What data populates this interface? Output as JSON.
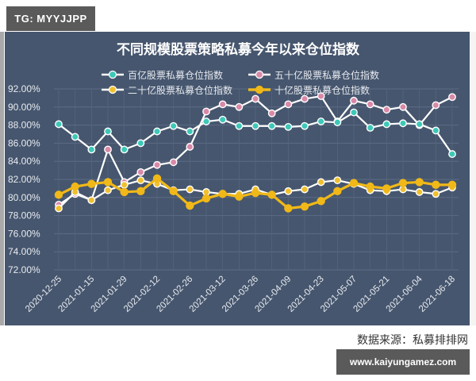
{
  "watermark_top": "TG: MYYJJPP",
  "watermark_bottom": "www.kaiyungamez.com",
  "source_note": "数据来源：私募排排网",
  "chart_data": {
    "type": "line",
    "title": "不同规模股票策略私募今年以来仓位指数",
    "xlabel": "",
    "ylabel": "",
    "ylim": [
      72,
      92
    ],
    "y_ticks": [
      "92.00%",
      "90.00%",
      "88.00%",
      "86.00%",
      "84.00%",
      "82.00%",
      "80.00%",
      "78.00%",
      "76.00%",
      "74.00%",
      "72.00%"
    ],
    "x_tick_labels": [
      "2020-12-25",
      "2021-01-15",
      "2021-01-29",
      "2021-02-12",
      "2021-02-26",
      "2021-03-12",
      "2021-03-26",
      "2021-04-09",
      "2021-04-23",
      "2021-05-07",
      "2021-05-21",
      "2021-06-04",
      "2021-06-18"
    ],
    "grid": true,
    "legend_position": "top",
    "point_count": 25,
    "series": [
      {
        "name": "百亿股票私募仓位指数",
        "color": "#3ec8b8",
        "values": [
          88.1,
          86.7,
          85.3,
          87.3,
          85.3,
          86.0,
          87.3,
          87.9,
          87.3,
          88.4,
          88.6,
          87.9,
          87.9,
          87.9,
          87.8,
          87.9,
          88.4,
          88.3,
          89.4,
          87.7,
          88.1,
          88.2,
          88.1,
          87.4,
          84.8
        ]
      },
      {
        "name": "五十亿股票私募仓位指数",
        "color": "#d98aa8",
        "values": [
          79.2,
          80.4,
          79.7,
          85.3,
          81.7,
          82.8,
          83.6,
          83.9,
          85.6,
          89.5,
          90.3,
          90.0,
          90.9,
          89.3,
          90.3,
          90.9,
          91.2,
          88.4,
          90.7,
          90.3,
          89.7,
          90.0,
          88.0,
          90.2,
          91.1
        ]
      },
      {
        "name": "二十亿股票私募仓位指数",
        "color": "#f0c030",
        "line_color": "#ffffff",
        "values": [
          78.8,
          80.6,
          79.7,
          80.8,
          81.4,
          81.9,
          81.5,
          80.8,
          80.9,
          80.6,
          80.4,
          80.4,
          80.9,
          80.3,
          80.7,
          80.9,
          81.7,
          81.9,
          81.5,
          80.8,
          80.7,
          80.9,
          80.6,
          80.4,
          81.1
        ]
      },
      {
        "name": "十亿股票私募仓位指数",
        "color": "#f0b818",
        "values": [
          80.3,
          81.2,
          81.5,
          81.7,
          80.6,
          80.7,
          82.1,
          80.7,
          79.1,
          79.9,
          80.4,
          80.1,
          80.5,
          80.3,
          78.8,
          79.0,
          79.6,
          80.7,
          81.6,
          81.2,
          81.0,
          81.6,
          81.7,
          81.4,
          81.4
        ]
      }
    ]
  }
}
